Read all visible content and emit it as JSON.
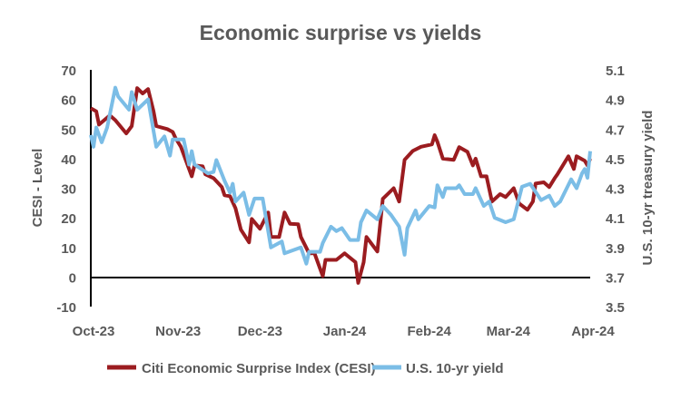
{
  "chart_data": {
    "type": "line",
    "title": "Economic surprise vs yields",
    "ylabel": "CESI - Level",
    "ylabel_right": "U.S. 10-yr treasury yield",
    "ylim": [
      -10,
      70
    ],
    "yticks": [
      "70",
      "60",
      "50",
      "40",
      "30",
      "20",
      "10",
      "0",
      "-10"
    ],
    "ylim_right": [
      3.5,
      5.1
    ],
    "yticks_right": [
      "5.1",
      "4.9",
      "4.7",
      "4.5",
      "4.3",
      "4.1",
      "3.9",
      "3.7",
      "3.5"
    ],
    "xlim": [
      "2023-10-01",
      "2024-04-01"
    ],
    "xticks": [
      {
        "date": "2023-10-01",
        "label": "Oct-23"
      },
      {
        "date": "2023-11-01",
        "label": "Nov-23"
      },
      {
        "date": "2023-12-01",
        "label": "Dec-23"
      },
      {
        "date": "2024-01-01",
        "label": "Jan-24"
      },
      {
        "date": "2024-02-01",
        "label": "Feb-24"
      },
      {
        "date": "2024-03-01",
        "label": "Mar-24"
      },
      {
        "date": "2024-04-01",
        "label": "Apr-24"
      }
    ],
    "grid": false,
    "legend": "bottom",
    "series": [
      {
        "name": "Citi Economic Surprise Index (CESI)",
        "axis": "left",
        "color": "#9B1C20",
        "points": [
          [
            "2023-10-01",
            57
          ],
          [
            "2023-10-03",
            56
          ],
          [
            "2023-10-04",
            51.5
          ],
          [
            "2023-10-08",
            54.6
          ],
          [
            "2023-10-10",
            53
          ],
          [
            "2023-10-14",
            48.5
          ],
          [
            "2023-10-16",
            51
          ],
          [
            "2023-10-18",
            63.8
          ],
          [
            "2023-10-20",
            62
          ],
          [
            "2023-10-22",
            63.5
          ],
          [
            "2023-10-24",
            56
          ],
          [
            "2023-10-25",
            51
          ],
          [
            "2023-10-29",
            50
          ],
          [
            "2023-10-31",
            49
          ],
          [
            "2023-11-01",
            47
          ],
          [
            "2023-11-03",
            44
          ],
          [
            "2023-11-06",
            36.5
          ],
          [
            "2023-11-07",
            34
          ],
          [
            "2023-11-08",
            37.7
          ],
          [
            "2023-11-11",
            37.4
          ],
          [
            "2023-11-12",
            34.7
          ],
          [
            "2023-11-15",
            33.4
          ],
          [
            "2023-11-18",
            30.4
          ],
          [
            "2023-11-19",
            27.6
          ],
          [
            "2023-11-21",
            27.3
          ],
          [
            "2023-11-23",
            23.3
          ],
          [
            "2023-11-25",
            16
          ],
          [
            "2023-11-28",
            11.7
          ],
          [
            "2023-11-29",
            19.6
          ],
          [
            "2023-12-02",
            16.3
          ],
          [
            "2023-12-05",
            21.8
          ],
          [
            "2023-12-06",
            13.5
          ],
          [
            "2023-12-09",
            13.5
          ],
          [
            "2023-12-11",
            21.8
          ],
          [
            "2023-12-13",
            18
          ],
          [
            "2023-12-16",
            17.8
          ],
          [
            "2023-12-17",
            13.5
          ],
          [
            "2023-12-20",
            8
          ],
          [
            "2023-12-22",
            8
          ],
          [
            "2023-12-25",
            0.3
          ],
          [
            "2023-12-26",
            5.8
          ],
          [
            "2023-12-30",
            5.8
          ],
          [
            "2024-01-02",
            8
          ],
          [
            "2024-01-06",
            5
          ],
          [
            "2024-01-07",
            -2
          ],
          [
            "2024-01-09",
            5
          ],
          [
            "2024-01-10",
            13.5
          ],
          [
            "2024-01-14",
            8.6
          ],
          [
            "2024-01-16",
            26.4
          ],
          [
            "2024-01-20",
            30
          ],
          [
            "2024-01-22",
            25.5
          ],
          [
            "2024-01-24",
            39.6
          ],
          [
            "2024-01-27",
            42.6
          ],
          [
            "2024-01-30",
            44
          ],
          [
            "2024-02-03",
            44.8
          ],
          [
            "2024-02-04",
            47.9
          ],
          [
            "2024-02-05",
            45.7
          ],
          [
            "2024-02-07",
            40
          ],
          [
            "2024-02-11",
            39.6
          ],
          [
            "2024-02-13",
            43.9
          ],
          [
            "2024-02-16",
            42.3
          ],
          [
            "2024-02-18",
            37.7
          ],
          [
            "2024-02-19",
            40
          ],
          [
            "2024-02-21",
            34
          ],
          [
            "2024-02-23",
            34
          ],
          [
            "2024-02-25",
            25.5
          ],
          [
            "2024-02-28",
            28
          ],
          [
            "2024-03-01",
            27
          ],
          [
            "2024-03-04",
            30
          ],
          [
            "2024-03-06",
            24.8
          ],
          [
            "2024-03-09",
            22.7
          ],
          [
            "2024-03-11",
            25.5
          ],
          [
            "2024-03-12",
            31.6
          ],
          [
            "2024-03-15",
            32
          ],
          [
            "2024-03-17",
            30.4
          ],
          [
            "2024-03-19",
            33.4
          ],
          [
            "2024-03-20",
            34.7
          ],
          [
            "2024-03-24",
            40.8
          ],
          [
            "2024-03-26",
            36.5
          ],
          [
            "2024-03-27",
            40.8
          ],
          [
            "2024-03-30",
            39.3
          ],
          [
            "2024-03-31",
            37.7
          ],
          [
            "2024-04-01",
            40
          ]
        ]
      },
      {
        "name": "U.S. 10-yr yield",
        "axis": "right",
        "color": "#7BBDE6",
        "points": [
          [
            "2023-10-01",
            4.66
          ],
          [
            "2023-10-02",
            4.58
          ],
          [
            "2023-10-03",
            4.71
          ],
          [
            "2023-10-05",
            4.61
          ],
          [
            "2023-10-07",
            4.71
          ],
          [
            "2023-10-10",
            4.98
          ],
          [
            "2023-10-11",
            4.92
          ],
          [
            "2023-10-15",
            4.83
          ],
          [
            "2023-10-16",
            4.95
          ],
          [
            "2023-10-18",
            4.83
          ],
          [
            "2023-10-22",
            4.9
          ],
          [
            "2023-10-25",
            4.58
          ],
          [
            "2023-10-28",
            4.65
          ],
          [
            "2023-10-30",
            4.52
          ],
          [
            "2023-10-31",
            4.63
          ],
          [
            "2023-11-04",
            4.63
          ],
          [
            "2023-11-06",
            4.46
          ],
          [
            "2023-11-07",
            4.55
          ],
          [
            "2023-11-08",
            4.46
          ],
          [
            "2023-11-13",
            4.4
          ],
          [
            "2023-11-15",
            4.41
          ],
          [
            "2023-11-16",
            4.49
          ],
          [
            "2023-11-19",
            4.35
          ],
          [
            "2023-11-21",
            4.27
          ],
          [
            "2023-11-22",
            4.33
          ],
          [
            "2023-11-23",
            4.21
          ],
          [
            "2023-11-26",
            4.27
          ],
          [
            "2023-11-28",
            4.12
          ],
          [
            "2023-11-30",
            4.23
          ],
          [
            "2023-12-03",
            4.23
          ],
          [
            "2023-12-06",
            3.9
          ],
          [
            "2023-12-10",
            3.94
          ],
          [
            "2023-12-11",
            3.86
          ],
          [
            "2023-12-17",
            3.9
          ],
          [
            "2023-12-19",
            3.79
          ],
          [
            "2023-12-20",
            3.87
          ],
          [
            "2023-12-24",
            3.87
          ],
          [
            "2023-12-25",
            3.93
          ],
          [
            "2023-12-28",
            4.04
          ],
          [
            "2023-12-30",
            4.01
          ],
          [
            "2024-01-01",
            4.03
          ],
          [
            "2024-01-04",
            3.95
          ],
          [
            "2024-01-07",
            3.95
          ],
          [
            "2024-01-08",
            4.07
          ],
          [
            "2024-01-10",
            4.15
          ],
          [
            "2024-01-14",
            4.09
          ],
          [
            "2024-01-16",
            4.18
          ],
          [
            "2024-01-19",
            4.12
          ],
          [
            "2024-01-22",
            4.04
          ],
          [
            "2024-01-24",
            3.85
          ],
          [
            "2024-01-25",
            4.03
          ],
          [
            "2024-01-28",
            4.15
          ],
          [
            "2024-01-29",
            4.09
          ],
          [
            "2024-02-02",
            4.18
          ],
          [
            "2024-02-04",
            4.17
          ],
          [
            "2024-02-05",
            4.32
          ],
          [
            "2024-02-07",
            4.24
          ],
          [
            "2024-02-08",
            4.3
          ],
          [
            "2024-02-12",
            4.3
          ],
          [
            "2024-02-13",
            4.32
          ],
          [
            "2024-02-15",
            4.26
          ],
          [
            "2024-02-18",
            4.26
          ],
          [
            "2024-02-19",
            4.3
          ],
          [
            "2024-02-22",
            4.18
          ],
          [
            "2024-02-24",
            4.21
          ],
          [
            "2024-02-26",
            4.1
          ],
          [
            "2024-03-01",
            4.07
          ],
          [
            "2024-03-04",
            4.09
          ],
          [
            "2024-03-07",
            4.31
          ],
          [
            "2024-03-10",
            4.33
          ],
          [
            "2024-03-14",
            4.22
          ],
          [
            "2024-03-17",
            4.25
          ],
          [
            "2024-03-19",
            4.18
          ],
          [
            "2024-03-21",
            4.21
          ],
          [
            "2024-03-25",
            4.36
          ],
          [
            "2024-03-27",
            4.3
          ],
          [
            "2024-03-29",
            4.4
          ],
          [
            "2024-03-30",
            4.43
          ],
          [
            "2024-03-31",
            4.37
          ],
          [
            "2024-04-01",
            4.55
          ]
        ]
      }
    ]
  }
}
